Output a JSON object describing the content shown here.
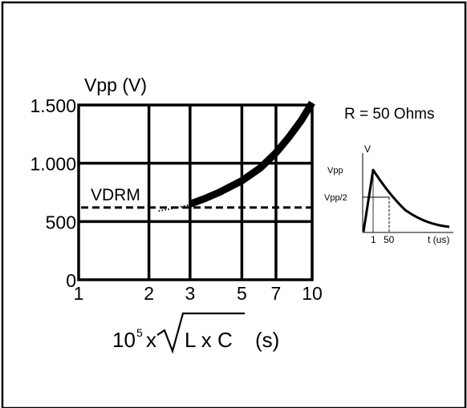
{
  "chart_data": {
    "type": "line",
    "ylabel": "Vpp (V)",
    "xlabel": {
      "base": "10",
      "exp": "5",
      "times": "x",
      "radicand": "L x C",
      "unit": "(s)"
    },
    "x_scale": "log",
    "xlim": [
      1,
      10
    ],
    "ylim": [
      0,
      1500
    ],
    "grid": true,
    "x_ticks": [
      {
        "v": 1,
        "label": "1"
      },
      {
        "v": 2,
        "label": "2"
      },
      {
        "v": 3,
        "label": "3"
      },
      {
        "v": 5,
        "label": "5"
      },
      {
        "v": 7,
        "label": "7"
      },
      {
        "v": 10,
        "label": "10"
      }
    ],
    "y_ticks": [
      {
        "v": 0,
        "label": "0"
      },
      {
        "v": 500,
        "label": "500"
      },
      {
        "v": 1000,
        "label": "1.000"
      },
      {
        "v": 1500,
        "label": "1.500"
      }
    ],
    "series": [
      {
        "name": "",
        "style": "thick",
        "x": [
          3,
          3.5,
          4,
          5,
          6,
          7,
          8,
          9,
          10
        ],
        "y": [
          650,
          700,
          750,
          850,
          960,
          1090,
          1230,
          1370,
          1520
        ]
      },
      {
        "name": "",
        "style": "dotted",
        "x": [
          2.2,
          2.5,
          2.8,
          3
        ],
        "y": [
          590,
          610,
          630,
          645
        ]
      }
    ],
    "reference_line": {
      "label": "VDRM",
      "y": 620
    },
    "annotation": "R = 50 Ohms",
    "inset": {
      "y_axis_label": "V",
      "x_axis_label": "t (us)",
      "peak_label": "Vpp",
      "half_label": "Vpp/2",
      "x_tick_labels": [
        "1",
        "50"
      ]
    }
  }
}
